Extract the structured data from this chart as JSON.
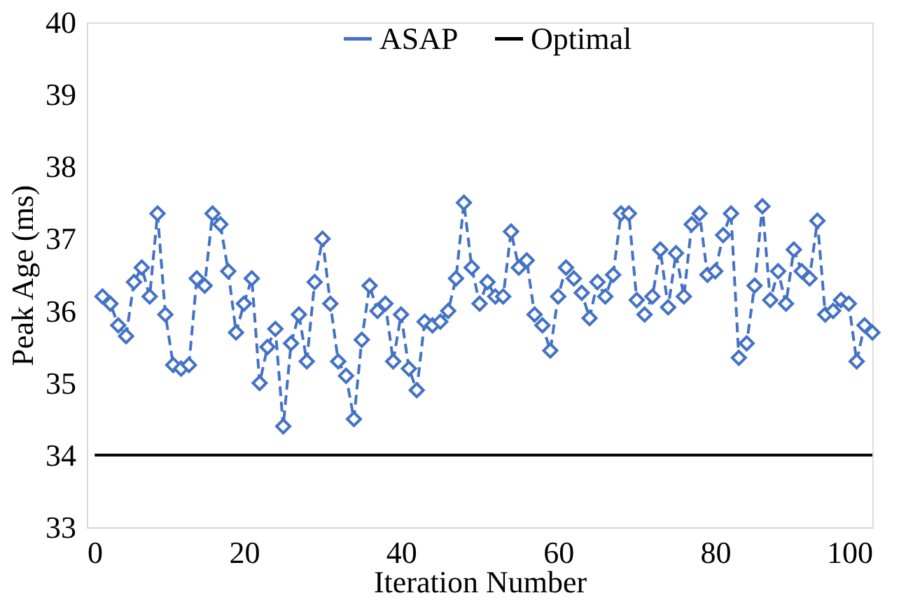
{
  "chart_data": {
    "type": "line",
    "xlabel": "Iteration Number",
    "ylabel": "Peak Age (ms)",
    "xlim": [
      0,
      100
    ],
    "xticks": [
      0,
      20,
      40,
      60,
      80,
      100
    ],
    "ylim": [
      33,
      40
    ],
    "yticks": [
      33,
      34,
      35,
      36,
      37,
      38,
      39,
      40
    ],
    "grid": false,
    "legend": "top",
    "series": [
      {
        "name": "ASAP",
        "color": "#4472c4",
        "marker": "diamond",
        "line_style": "dashed",
        "x": [
          2,
          3,
          4,
          5,
          6,
          7,
          8,
          9,
          10,
          11,
          12,
          13,
          14,
          15,
          16,
          17,
          18,
          19,
          20,
          21,
          22,
          23,
          24,
          25,
          26,
          27,
          28,
          29,
          30,
          31,
          32,
          33,
          34,
          35,
          36,
          37,
          38,
          39,
          40,
          41,
          42,
          43,
          44,
          45,
          46,
          47,
          48,
          49,
          50,
          51,
          52,
          53,
          54,
          55,
          56,
          57,
          58,
          59,
          60,
          61,
          62,
          63,
          64,
          65,
          66,
          67,
          68,
          69,
          70,
          71,
          72,
          73,
          74,
          75,
          76,
          77,
          78,
          79,
          80,
          81,
          82,
          83,
          84,
          85,
          86,
          87,
          88,
          89,
          90,
          91,
          92,
          93,
          94,
          95,
          96,
          97,
          98,
          99,
          100
        ],
        "values": [
          36.2,
          36.1,
          35.8,
          35.65,
          36.4,
          36.6,
          36.2,
          37.35,
          35.95,
          35.25,
          35.2,
          35.25,
          36.45,
          36.35,
          37.35,
          37.2,
          36.55,
          35.7,
          36.1,
          36.45,
          35.0,
          35.5,
          35.75,
          34.4,
          35.55,
          35.95,
          35.3,
          36.4,
          37.0,
          36.1,
          35.3,
          35.1,
          34.5,
          35.6,
          36.35,
          36.0,
          36.1,
          35.3,
          35.95,
          35.2,
          34.9,
          35.85,
          35.8,
          35.85,
          36.0,
          36.45,
          37.5,
          36.6,
          36.1,
          36.4,
          36.2,
          36.2,
          37.1,
          36.6,
          36.7,
          35.95,
          35.8,
          35.45,
          36.2,
          36.6,
          36.45,
          36.25,
          35.9,
          36.4,
          36.2,
          36.5,
          37.35,
          37.35,
          36.15,
          35.95,
          36.2,
          36.85,
          36.05,
          36.8,
          36.2,
          37.2,
          37.35,
          36.5,
          36.55,
          37.05,
          37.35,
          35.35,
          35.55,
          36.35,
          37.45,
          36.15,
          36.55,
          36.1,
          36.85,
          36.55,
          36.45,
          37.25,
          35.95,
          36.0,
          36.15,
          36.1,
          35.3,
          35.8,
          35.7
        ]
      },
      {
        "name": "Optimal",
        "color": "#000000",
        "marker": "none",
        "line_style": "solid",
        "x": [
          1,
          100
        ],
        "values": [
          34,
          34
        ]
      }
    ]
  }
}
